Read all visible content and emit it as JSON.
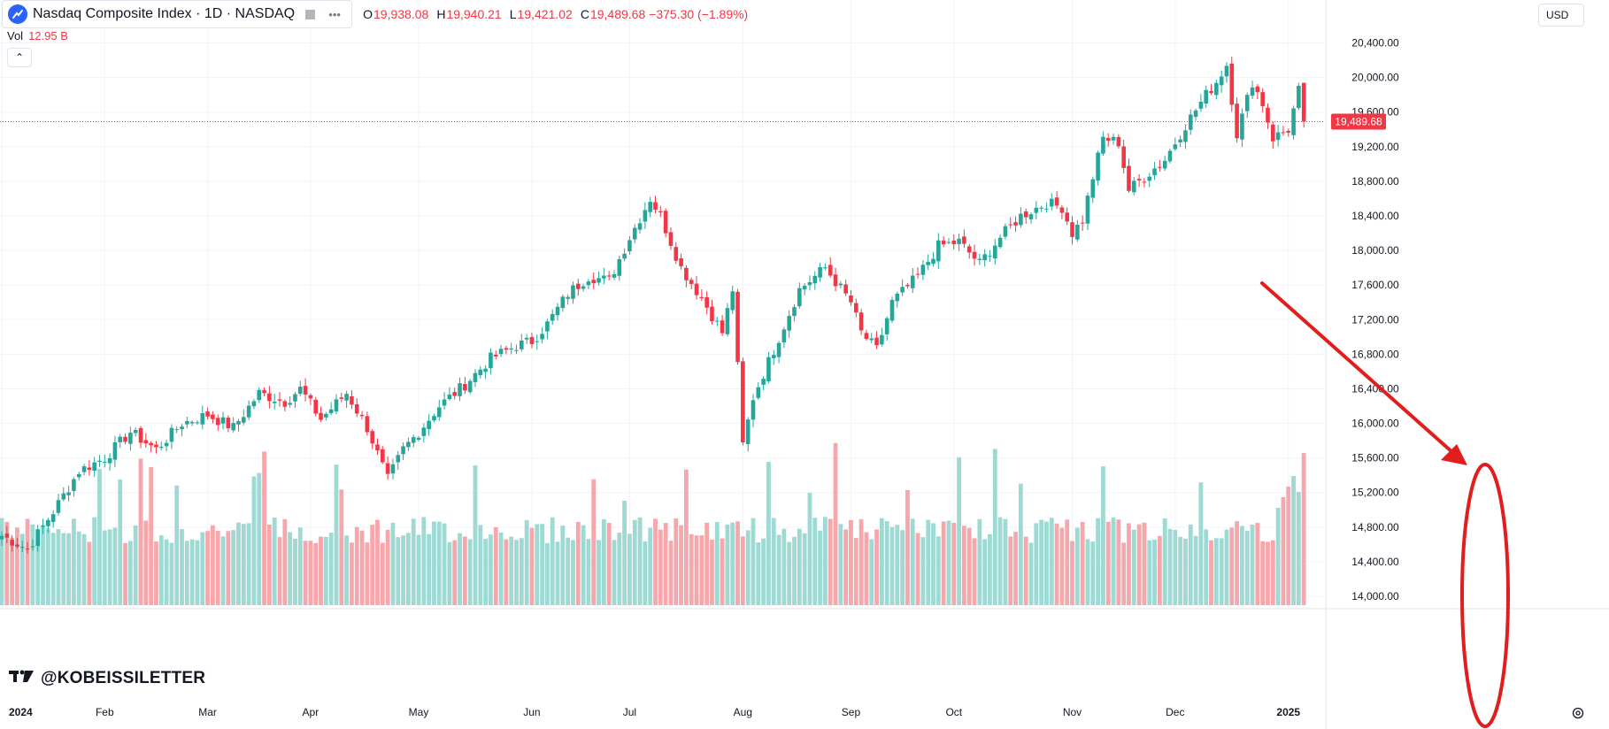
{
  "header": {
    "title": "Nasdaq Composite Index · 1D · NASDAQ",
    "ohlc": [
      {
        "key": "O",
        "value": "19,938.08"
      },
      {
        "key": "H",
        "value": "19,940.21"
      },
      {
        "key": "L",
        "value": "19,421.02"
      },
      {
        "key": "C",
        "value": "19,489.68"
      }
    ],
    "change": "−375.30 (−1.89%)"
  },
  "volume": {
    "label": "Vol",
    "value": "12.95 B"
  },
  "currency": "USD",
  "watermark": "@KOBEISSILETTER",
  "icons": {
    "symbol_logo": "nasdaq-logo-icon",
    "compare": "compare-square-icon",
    "more": "more-dots-icon",
    "collapse": "chevron-up-icon",
    "settings": "settings-gear-icon",
    "tv_logo": "tradingview-logo-icon"
  },
  "colors": {
    "up": "#26a69a",
    "down": "#f23645",
    "up_volume": "#9fd9d3",
    "down_volume": "#f6a7ac",
    "annotation": "#e11d1d"
  },
  "chart_data": {
    "type": "candlestick",
    "title": "Nasdaq Composite Index · 1D · NASDAQ",
    "ylim": [
      13800,
      20600
    ],
    "y_ticks": [
      {
        "value": 20400,
        "label": "20,400.00"
      },
      {
        "value": 20000,
        "label": "20,000.00"
      },
      {
        "value": 19600,
        "label": "19,600.00"
      },
      {
        "value": 19200,
        "label": "19,200.00"
      },
      {
        "value": 18800,
        "label": "18,800.00"
      },
      {
        "value": 18400,
        "label": "18,400.00"
      },
      {
        "value": 18000,
        "label": "18,000.00"
      },
      {
        "value": 17600,
        "label": "17,600.00"
      },
      {
        "value": 17200,
        "label": "17,200.00"
      },
      {
        "value": 16800,
        "label": "16,800.00"
      },
      {
        "value": 16400,
        "label": "16,400.00"
      },
      {
        "value": 16000,
        "label": "16,000.00"
      },
      {
        "value": 15600,
        "label": "15,600.00"
      },
      {
        "value": 15200,
        "label": "15,200.00"
      },
      {
        "value": 14800,
        "label": "14,800.00"
      },
      {
        "value": 14400,
        "label": "14,400.00"
      },
      {
        "value": 14000,
        "label": "14,000.00"
      }
    ],
    "x_ticks": [
      {
        "index": 0,
        "label": "2024",
        "bold": true
      },
      {
        "index": 20,
        "label": "Feb"
      },
      {
        "index": 40,
        "label": "Mar"
      },
      {
        "index": 60,
        "label": "Apr"
      },
      {
        "index": 81,
        "label": "May"
      },
      {
        "index": 103,
        "label": "Jun"
      },
      {
        "index": 122,
        "label": "Jul"
      },
      {
        "index": 144,
        "label": "Aug"
      },
      {
        "index": 165,
        "label": "Sep"
      },
      {
        "index": 185,
        "label": "Oct"
      },
      {
        "index": 208,
        "label": "Nov"
      },
      {
        "index": 228,
        "label": "Dec"
      },
      {
        "index": 250,
        "label": "2025",
        "bold": true
      }
    ],
    "last_price": {
      "value": 19489.68,
      "label": "19,489.68"
    },
    "key_points": [
      {
        "index": 0,
        "close": 14700
      },
      {
        "index": 5,
        "close": 14550
      },
      {
        "index": 10,
        "close": 14980
      },
      {
        "index": 15,
        "close": 15450
      },
      {
        "index": 20,
        "close": 15600
      },
      {
        "index": 25,
        "close": 15900
      },
      {
        "index": 30,
        "close": 15700
      },
      {
        "index": 35,
        "close": 16000
      },
      {
        "index": 40,
        "close": 16100
      },
      {
        "index": 45,
        "close": 15950
      },
      {
        "index": 50,
        "close": 16350
      },
      {
        "index": 55,
        "close": 16250
      },
      {
        "index": 58,
        "close": 16400
      },
      {
        "index": 62,
        "close": 16050
      },
      {
        "index": 67,
        "close": 16350
      },
      {
        "index": 71,
        "close": 15950
      },
      {
        "index": 75,
        "close": 15350
      },
      {
        "index": 78,
        "close": 15700
      },
      {
        "index": 81,
        "close": 15900
      },
      {
        "index": 85,
        "close": 16200
      },
      {
        "index": 90,
        "close": 16450
      },
      {
        "index": 95,
        "close": 16750
      },
      {
        "index": 100,
        "close": 16900
      },
      {
        "index": 103,
        "close": 16950
      },
      {
        "index": 106,
        "close": 17150
      },
      {
        "index": 110,
        "close": 17500
      },
      {
        "index": 114,
        "close": 17700
      },
      {
        "index": 118,
        "close": 17650
      },
      {
        "index": 122,
        "close": 18150
      },
      {
        "index": 126,
        "close": 18600
      },
      {
        "index": 128,
        "close": 18400
      },
      {
        "index": 132,
        "close": 17800
      },
      {
        "index": 136,
        "close": 17450
      },
      {
        "index": 140,
        "close": 17050
      },
      {
        "index": 142,
        "close": 17550
      },
      {
        "index": 144,
        "close": 15750
      },
      {
        "index": 146,
        "close": 16300
      },
      {
        "index": 150,
        "close": 16850
      },
      {
        "index": 155,
        "close": 17550
      },
      {
        "index": 160,
        "close": 17800
      },
      {
        "index": 165,
        "close": 17400
      },
      {
        "index": 167,
        "close": 17050
      },
      {
        "index": 170,
        "close": 16850
      },
      {
        "index": 173,
        "close": 17400
      },
      {
        "index": 178,
        "close": 17700
      },
      {
        "index": 182,
        "close": 18050
      },
      {
        "index": 186,
        "close": 18100
      },
      {
        "index": 190,
        "close": 17850
      },
      {
        "index": 194,
        "close": 18150
      },
      {
        "index": 198,
        "close": 18400
      },
      {
        "index": 203,
        "close": 18550
      },
      {
        "index": 206,
        "close": 18500
      },
      {
        "index": 208,
        "close": 18200
      },
      {
        "index": 210,
        "close": 18350
      },
      {
        "index": 212,
        "close": 18850
      },
      {
        "index": 214,
        "close": 19300
      },
      {
        "index": 217,
        "close": 19250
      },
      {
        "index": 219,
        "close": 18700
      },
      {
        "index": 222,
        "close": 18850
      },
      {
        "index": 226,
        "close": 19050
      },
      {
        "index": 230,
        "close": 19450
      },
      {
        "index": 234,
        "close": 19800
      },
      {
        "index": 236,
        "close": 19950
      },
      {
        "index": 238,
        "close": 20150
      },
      {
        "index": 240,
        "close": 19350
      },
      {
        "index": 243,
        "close": 19950
      },
      {
        "index": 245,
        "close": 19700
      },
      {
        "index": 247,
        "close": 19300
      },
      {
        "index": 250,
        "close": 19400
      },
      {
        "index": 252,
        "close": 19850
      },
      {
        "index": 253,
        "close": 19489.68
      }
    ],
    "volume": {
      "unit": "B",
      "last": 12.95
    }
  }
}
